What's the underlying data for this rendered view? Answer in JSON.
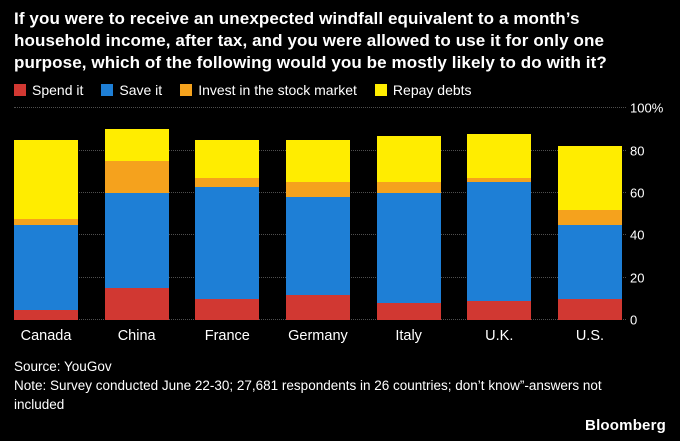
{
  "title": "If you were to receive an unexpected windfall equivalent to a month’s household income, after tax, and you were allowed to use it for only one purpose, which of the following would you be mostly likely to do with it?",
  "footer": {
    "source": "Source: YouGov",
    "note": "Note: Survey conducted June 22-30; 27,681 respondents in 26 countries; don’t know”-answers not included"
  },
  "logo": "Bloomberg",
  "chart_data": {
    "type": "bar",
    "stacked": true,
    "categories": [
      "Canada",
      "China",
      "France",
      "Germany",
      "Italy",
      "U.K.",
      "U.S."
    ],
    "series": [
      {
        "name": "Spend it",
        "color": "#d13832",
        "values": [
          5,
          15,
          10,
          12,
          8,
          9,
          10
        ]
      },
      {
        "name": "Save it",
        "color": "#1e7fd6",
        "values": [
          40,
          45,
          53,
          46,
          52,
          56,
          35
        ]
      },
      {
        "name": "Invest in the stock market",
        "color": "#f5a21d",
        "values": [
          3,
          15,
          4,
          7,
          5,
          2,
          7
        ]
      },
      {
        "name": "Repay debts",
        "color": "#ffed00",
        "values": [
          37,
          15,
          18,
          20,
          22,
          21,
          30
        ]
      }
    ],
    "ylim": [
      0,
      100
    ],
    "yticks": [
      0,
      20,
      40,
      60,
      80,
      100
    ],
    "ytick_labels": [
      "0",
      "20",
      "40",
      "60",
      "80",
      "100%"
    ],
    "grid": "dotted horizontal",
    "legend_position": "top",
    "background": "#000000"
  }
}
